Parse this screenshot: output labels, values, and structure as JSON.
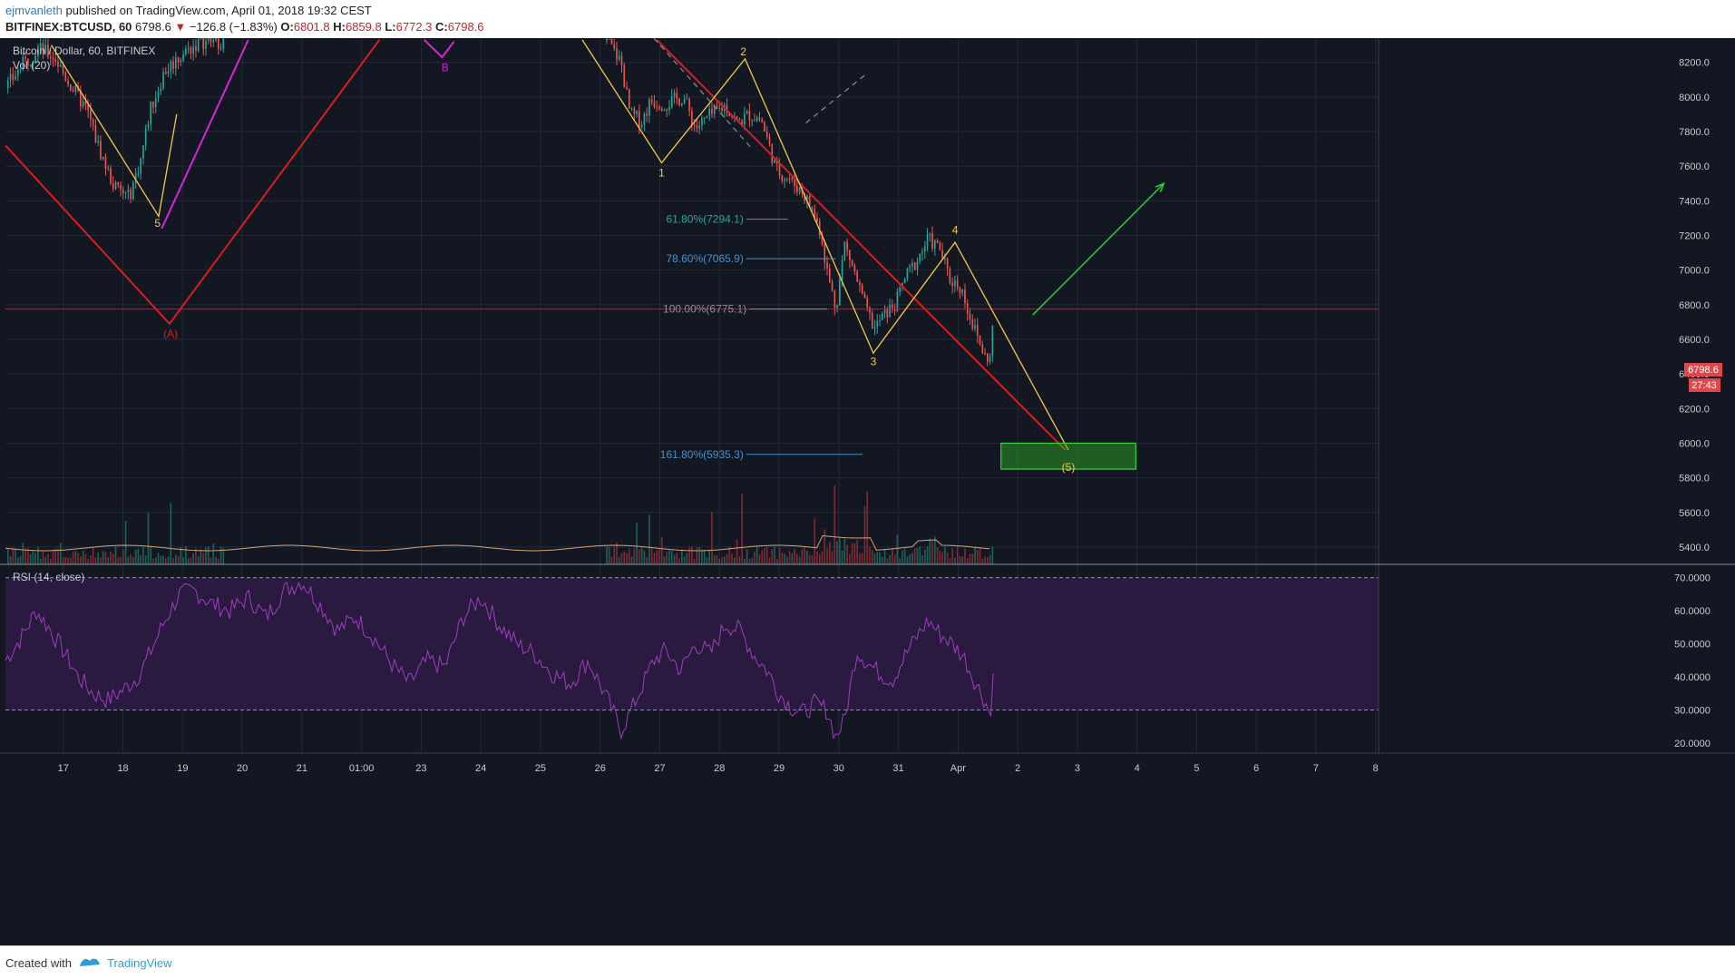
{
  "header": {
    "author": "ejmvanleth",
    "published_text": "published on TradingView.com, April 01, 2018 19:32 CEST",
    "symbol": "BITFINEX:BTCUSD, 60",
    "last": "6798.6",
    "change": "−126.8 (−1.83%)",
    "o_label": "O:",
    "o_value": "6801.8",
    "h_label": "H:",
    "h_value": "6859.8",
    "l_label": "L:",
    "l_value": "6772.3",
    "c_label": "C:",
    "c_value": "6798.6"
  },
  "legend": {
    "title": "Bitcoin / Dollar, 60, BITFINEX",
    "vol": "Vol (20)",
    "rsi": "RSI (14, close)"
  },
  "price_badge": {
    "value": "6798.6",
    "countdown": "27:43"
  },
  "footer": {
    "created_with": "Created with",
    "brand": "TradingView"
  },
  "colors": {
    "background": "#131722",
    "up": "#26a69a",
    "down": "#ef5350",
    "wave": "#f2c94c",
    "trend_red": "#d81e1e",
    "magenta": "#d625d6",
    "green_arrow": "#2ecc40",
    "rsi_line": "#9b3fbd",
    "rsi_band": "#2b1a3f"
  },
  "chart_data": {
    "type": "candlestick",
    "symbol": "BTCUSD",
    "interval": "60",
    "price_axis": {
      "ylim": [
        5300,
        8340
      ],
      "ticks": [
        5400,
        5600,
        5800,
        6000,
        6200,
        6400,
        6600,
        6800,
        7000,
        7200,
        7400,
        7600,
        7800,
        8000,
        8200
      ],
      "tick_labels": [
        "5400.0",
        "5600.0",
        "5800.0",
        "6000.0",
        "6200.0",
        "6400.0",
        "6600.0",
        "6800.0",
        "7000.0",
        "7200.0",
        "7400.0",
        "7600.0",
        "7800.0",
        "8000.0",
        "8200.0"
      ]
    },
    "time_axis": {
      "labels": [
        "17",
        "18",
        "19",
        "20",
        "21",
        "01:00",
        "23",
        "24",
        "25",
        "26",
        "27",
        "28",
        "29",
        "30",
        "31",
        "Apr",
        "2",
        "3",
        "4",
        "5",
        "6",
        "7",
        "8"
      ],
      "positions": [
        1,
        2,
        3,
        4,
        5,
        6,
        7,
        8,
        9,
        10,
        11,
        12,
        13,
        14,
        15,
        16,
        17,
        18,
        19,
        20,
        21,
        22,
        23
      ],
      "range": [
        0.03,
        23.05
      ]
    },
    "close_path": [
      [
        0.03,
        8050
      ],
      [
        0.3,
        8180
      ],
      [
        0.6,
        8280
      ],
      [
        0.85,
        8230
      ],
      [
        1.1,
        8080
      ],
      [
        1.4,
        7920
      ],
      [
        1.6,
        7700
      ],
      [
        1.85,
        7480
      ],
      [
        2.1,
        7420
      ],
      [
        2.3,
        7640
      ],
      [
        2.45,
        7920
      ],
      [
        2.7,
        8150
      ],
      [
        3.0,
        8250
      ],
      [
        3.3,
        8320
      ],
      [
        3.7,
        8320
      ],
      [
        10.1,
        8330
      ],
      [
        10.35,
        8200
      ],
      [
        10.5,
        7900
      ],
      [
        10.7,
        7860
      ],
      [
        10.85,
        7980
      ],
      [
        11.1,
        7960
      ],
      [
        11.4,
        8000
      ],
      [
        11.6,
        7820
      ],
      [
        11.8,
        7880
      ],
      [
        12.1,
        7950
      ],
      [
        12.3,
        7850
      ],
      [
        12.5,
        7900
      ],
      [
        12.7,
        7870
      ],
      [
        12.85,
        7700
      ],
      [
        12.95,
        7580
      ],
      [
        13.15,
        7530
      ],
      [
        13.4,
        7450
      ],
      [
        13.55,
        7350
      ],
      [
        13.7,
        7220
      ],
      [
        13.8,
        7000
      ],
      [
        13.95,
        6780
      ],
      [
        14.1,
        7150
      ],
      [
        14.25,
        7000
      ],
      [
        14.45,
        6780
      ],
      [
        14.6,
        6660
      ],
      [
        14.75,
        6740
      ],
      [
        14.95,
        6800
      ],
      [
        15.1,
        6950
      ],
      [
        15.3,
        7050
      ],
      [
        15.5,
        7180
      ],
      [
        15.7,
        7120
      ],
      [
        15.85,
        6950
      ],
      [
        16.05,
        6900
      ],
      [
        16.25,
        6680
      ],
      [
        16.45,
        6500
      ],
      [
        16.55,
        6490
      ],
      [
        16.6,
        6800
      ]
    ],
    "ohlc_last": {
      "open": 6801.8,
      "high": 6859.8,
      "low": 6772.3,
      "close": 6798.6
    },
    "last_price_line": 6775,
    "fibonacci": [
      {
        "label": "61.80%(7294.1)",
        "value": 7294.1,
        "x": [
          12.45,
          13.15
        ]
      },
      {
        "label": "78.60%(7065.9)",
        "value": 7065.9,
        "x": [
          12.45,
          13.95
        ]
      },
      {
        "label": "100.00%(6775.1)",
        "value": 6775.1,
        "x": [
          12.5,
          13.8
        ]
      },
      {
        "label": "161.80%(5935.3)",
        "value": 5935.3,
        "x": [
          12.45,
          14.4
        ]
      }
    ],
    "wave_labels": [
      {
        "text": "5",
        "x": 2.58,
        "y": 7250
      },
      {
        "text": "(A)",
        "x": 2.8,
        "y": 6610
      },
      {
        "text": "B",
        "x": 7.4,
        "y": 8150
      },
      {
        "text": "1",
        "x": 11.03,
        "y": 7540
      },
      {
        "text": "2",
        "x": 12.4,
        "y": 8240
      },
      {
        "text": "3",
        "x": 14.58,
        "y": 6450
      },
      {
        "text": "4",
        "x": 15.95,
        "y": 7210
      },
      {
        "text": "(5)",
        "x": 17.85,
        "y": 5840
      }
    ],
    "yellow_wave_left": [
      [
        0.8,
        8300
      ],
      [
        2.6,
        7310
      ],
      [
        2.9,
        7900
      ]
    ],
    "yellow_wave_right": [
      [
        9.7,
        8330
      ],
      [
        11.03,
        7620
      ],
      [
        12.43,
        8220
      ],
      [
        14.58,
        6520
      ],
      [
        15.95,
        7160
      ],
      [
        17.85,
        5960
      ]
    ],
    "red_trendline_left": [
      [
        0.03,
        7720
      ],
      [
        2.78,
        6690
      ],
      [
        6.3,
        8330
      ]
    ],
    "red_trendline_right": [
      [
        10.95,
        8330
      ],
      [
        17.8,
        5960
      ]
    ],
    "magenta_lines": [
      [
        [
          2.65,
          7240
        ],
        [
          4.1,
          8330
        ]
      ],
      [
        [
          7.05,
          8330
        ],
        [
          7.35,
          8230
        ],
        [
          7.55,
          8320
        ]
      ]
    ],
    "gray_dashed": [
      [
        [
          10.9,
          8340
        ],
        [
          12.55,
          7700
        ]
      ],
      [
        [
          13.45,
          7850
        ],
        [
          14.45,
          8130
        ]
      ]
    ],
    "green_arrow": [
      [
        17.25,
        6740
      ],
      [
        19.45,
        7500
      ]
    ],
    "target_box": {
      "x": [
        16.72,
        18.98
      ],
      "y": [
        5850,
        6000
      ]
    },
    "volume": {
      "indicator": "Vol (20)"
    },
    "rsi": {
      "indicator": "RSI (14, close)",
      "ylim": [
        17,
        74
      ],
      "ticks": [
        20,
        30,
        40,
        50,
        60,
        70
      ],
      "tick_labels": [
        "20.0000",
        "30.0000",
        "40.0000",
        "50.0000",
        "60.0000",
        "70.0000"
      ],
      "band": [
        30,
        70
      ],
      "path": [
        [
          0.03,
          45
        ],
        [
          0.3,
          52
        ],
        [
          0.55,
          60
        ],
        [
          0.75,
          55
        ],
        [
          1.0,
          48
        ],
        [
          1.25,
          40
        ],
        [
          1.5,
          35
        ],
        [
          1.75,
          33
        ],
        [
          2.0,
          36
        ],
        [
          2.25,
          40
        ],
        [
          2.45,
          47
        ],
        [
          2.7,
          57
        ],
        [
          2.95,
          65
        ],
        [
          3.2,
          66
        ],
        [
          3.5,
          62
        ],
        [
          3.8,
          60
        ],
        [
          4.1,
          64
        ],
        [
          4.4,
          58
        ],
        [
          4.7,
          66
        ],
        [
          5.0,
          69
        ],
        [
          5.3,
          62
        ],
        [
          5.6,
          54
        ],
        [
          5.9,
          58
        ],
        [
          6.2,
          52
        ],
        [
          6.5,
          44
        ],
        [
          6.8,
          38
        ],
        [
          7.1,
          45
        ],
        [
          7.4,
          43
        ],
        [
          7.7,
          58
        ],
        [
          8.0,
          64
        ],
        [
          8.3,
          56
        ],
        [
          8.6,
          50
        ],
        [
          8.9,
          47
        ],
        [
          9.2,
          41
        ],
        [
          9.5,
          38
        ],
        [
          9.8,
          45
        ],
        [
          10.1,
          34
        ],
        [
          10.35,
          24
        ],
        [
          10.5,
          29
        ],
        [
          10.7,
          37
        ],
        [
          10.9,
          45
        ],
        [
          11.1,
          48
        ],
        [
          11.35,
          42
        ],
        [
          11.6,
          50
        ],
        [
          11.85,
          47
        ],
        [
          12.1,
          56
        ],
        [
          12.35,
          54
        ],
        [
          12.6,
          46
        ],
        [
          12.8,
          42
        ],
        [
          13.0,
          35
        ],
        [
          13.2,
          31
        ],
        [
          13.4,
          29
        ],
        [
          13.6,
          32
        ],
        [
          13.8,
          30
        ],
        [
          13.95,
          22
        ],
        [
          14.1,
          27
        ],
        [
          14.3,
          48
        ],
        [
          14.5,
          44
        ],
        [
          14.7,
          41
        ],
        [
          14.9,
          39
        ],
        [
          15.1,
          46
        ],
        [
          15.3,
          52
        ],
        [
          15.5,
          57
        ],
        [
          15.7,
          53
        ],
        [
          15.9,
          50
        ],
        [
          16.1,
          46
        ],
        [
          16.3,
          38
        ],
        [
          16.45,
          33
        ],
        [
          16.55,
          28
        ],
        [
          16.6,
          48
        ]
      ]
    }
  }
}
